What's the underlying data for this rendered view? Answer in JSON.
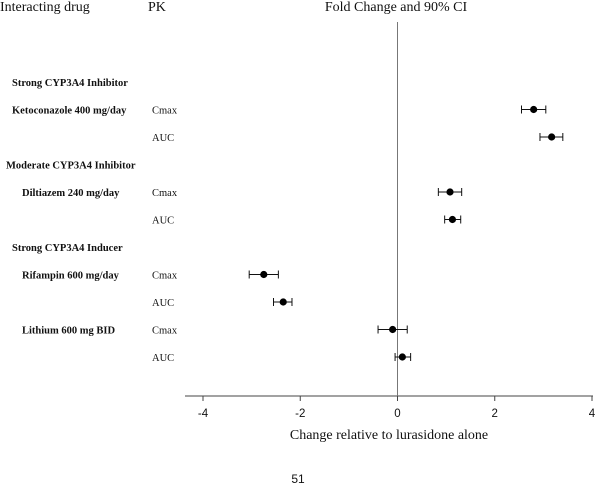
{
  "header": {
    "drug_col": "Interacting drug",
    "pk_col": "PK",
    "title": "Fold Change and 90% CI"
  },
  "page_number": "51",
  "chart_data": {
    "type": "forest",
    "title": "Fold Change and 90% CI",
    "xlabel": "Change relative to lurasidone alone",
    "xlim": [
      -4.4,
      4
    ],
    "xticks": [
      -4,
      -2,
      0,
      2,
      4
    ],
    "reference_line": 0,
    "grid": false,
    "rows": [
      {
        "kind": "category",
        "label": "Strong CYP3A4 Inhibitor"
      },
      {
        "kind": "data",
        "drug": "Ketoconazole 400 mg/day",
        "pk": "Cmax",
        "estimate": 2.8,
        "ci": [
          2.55,
          3.05
        ]
      },
      {
        "kind": "data",
        "drug": "",
        "pk": "AUC",
        "estimate": 3.17,
        "ci": [
          2.93,
          3.4
        ]
      },
      {
        "kind": "category",
        "label": "Moderate CYP3A4 Inhibitor"
      },
      {
        "kind": "data",
        "drug": "Diltiazem 240 mg/day",
        "pk": "Cmax",
        "estimate": 1.08,
        "ci": [
          0.84,
          1.32
        ]
      },
      {
        "kind": "data",
        "drug": "",
        "pk": "AUC",
        "estimate": 1.13,
        "ci": [
          0.97,
          1.3
        ]
      },
      {
        "kind": "category",
        "label": "Strong CYP3A4 Inducer"
      },
      {
        "kind": "data",
        "drug": "Rifampin 600 mg/day",
        "pk": "Cmax",
        "estimate": -2.75,
        "ci": [
          -3.05,
          -2.45
        ]
      },
      {
        "kind": "data",
        "drug": "",
        "pk": "AUC",
        "estimate": -2.35,
        "ci": [
          -2.55,
          -2.17
        ]
      },
      {
        "kind": "data",
        "drug": "Lithium 600 mg BID",
        "pk": "Cmax",
        "estimate": -0.1,
        "ci": [
          -0.4,
          0.2
        ]
      },
      {
        "kind": "data",
        "drug": "",
        "pk": "AUC",
        "estimate": 0.1,
        "ci": [
          -0.05,
          0.27
        ]
      }
    ]
  }
}
